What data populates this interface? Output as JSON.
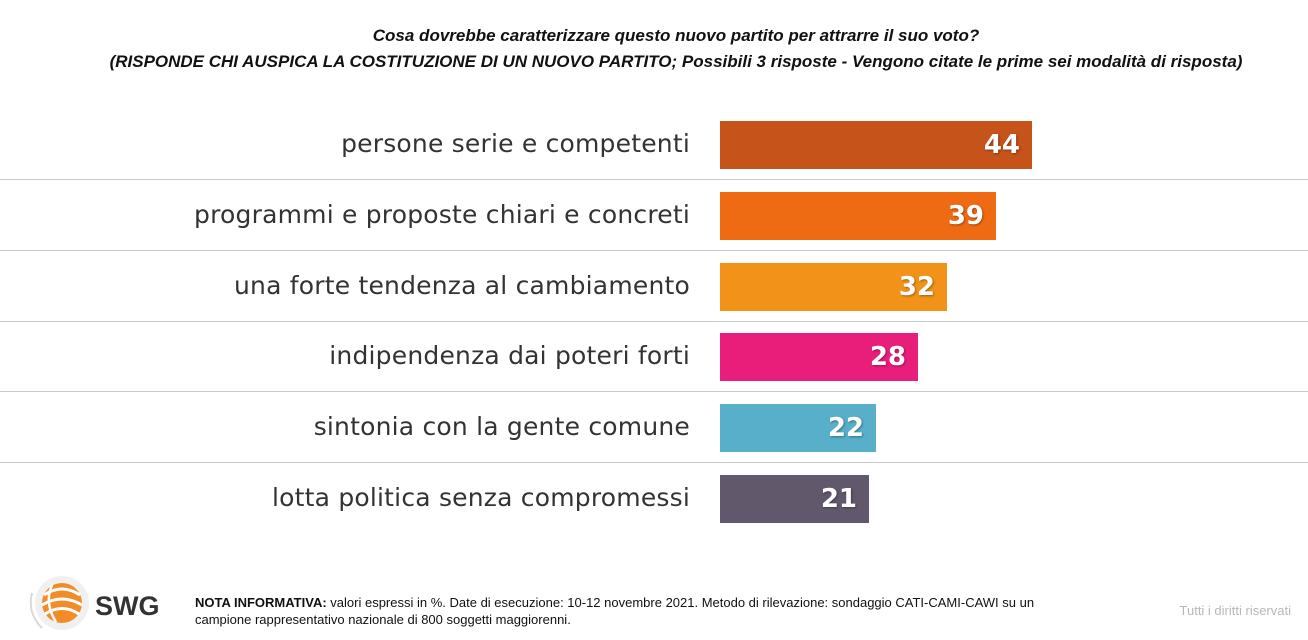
{
  "chart_data": {
    "type": "bar",
    "orientation": "horizontal",
    "title": "Cosa dovrebbe caratterizzare questo nuovo partito per attrarre il suo voto?",
    "subtitle": "(RISPONDE CHI AUSPICA LA COSTITUZIONE DI UN NUOVO PARTITO; Possibili 3 risposte - Vengono citate le prime sei modalità di risposta)",
    "categories": [
      "persone serie e competenti",
      "programmi e proposte chiari e concreti",
      "una forte tendenza al cambiamento",
      "indipendenza dai poteri forti",
      "sintonia con la gente comune",
      "lotta politica senza compromessi"
    ],
    "values": [
      44,
      39,
      32,
      28,
      22,
      21
    ],
    "colors": [
      "#c6531a",
      "#ef6b13",
      "#f39218",
      "#e91e7b",
      "#57afc9",
      "#62586b"
    ],
    "xlim": [
      0,
      100
    ],
    "grid": false,
    "legend": "none"
  },
  "footer": {
    "logo_text": "SWG",
    "note_label": "NOTA INFORMATIVA:",
    "note_text": " valori espressi in %. Date di esecuzione: 10-12 novembre 2021. Metodo di rilevazione: sondaggio CATI-CAMI-CAWI su un campione rappresentativo nazionale di 800 soggetti maggiorenni.",
    "rights": "Tutti i diritti riservati"
  }
}
